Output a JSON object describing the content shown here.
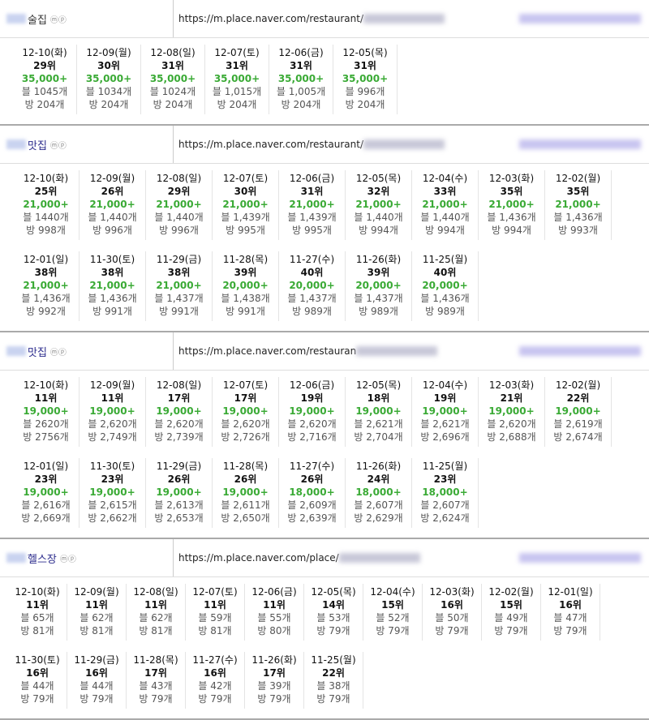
{
  "sections": [
    {
      "keyword": "술집",
      "icons": "ⓜⓟ",
      "url": "https://m.place.naver.com/restaurant/",
      "cells": [
        {
          "date": "12-10(화)",
          "rank": "29위",
          "reviews": "35,000+",
          "blog": "블 1045개",
          "place": "방 204개"
        },
        {
          "date": "12-09(월)",
          "rank": "30위",
          "reviews": "35,000+",
          "blog": "블 1034개",
          "place": "방 204개"
        },
        {
          "date": "12-08(일)",
          "rank": "31위",
          "reviews": "35,000+",
          "blog": "블 1024개",
          "place": "방 204개"
        },
        {
          "date": "12-07(토)",
          "rank": "31위",
          "reviews": "35,000+",
          "blog": "블 1,015개",
          "place": "방 204개"
        },
        {
          "date": "12-06(금)",
          "rank": "31위",
          "reviews": "35,000+",
          "blog": "블 1,005개",
          "place": "방 204개"
        },
        {
          "date": "12-05(목)",
          "rank": "31위",
          "reviews": "35,000+",
          "blog": "블 996개",
          "place": "방 204개"
        }
      ]
    },
    {
      "keyword": "맛집",
      "icons": "ⓜⓟ",
      "url": "https://m.place.naver.com/restaurant/",
      "cells": [
        {
          "date": "12-10(화)",
          "rank": "25위",
          "reviews": "21,000+",
          "blog": "블 1440개",
          "place": "방 998개"
        },
        {
          "date": "12-09(월)",
          "rank": "26위",
          "reviews": "21,000+",
          "blog": "블 1,440개",
          "place": "방 996개"
        },
        {
          "date": "12-08(일)",
          "rank": "29위",
          "reviews": "21,000+",
          "blog": "블 1,440개",
          "place": "방 996개"
        },
        {
          "date": "12-07(토)",
          "rank": "30위",
          "reviews": "21,000+",
          "blog": "블 1,439개",
          "place": "방 995개"
        },
        {
          "date": "12-06(금)",
          "rank": "31위",
          "reviews": "21,000+",
          "blog": "블 1,439개",
          "place": "방 995개"
        },
        {
          "date": "12-05(목)",
          "rank": "32위",
          "reviews": "21,000+",
          "blog": "블 1,440개",
          "place": "방 994개"
        },
        {
          "date": "12-04(수)",
          "rank": "33위",
          "reviews": "21,000+",
          "blog": "블 1,440개",
          "place": "방 994개"
        },
        {
          "date": "12-03(화)",
          "rank": "35위",
          "reviews": "21,000+",
          "blog": "블 1,436개",
          "place": "방 994개"
        },
        {
          "date": "12-02(월)",
          "rank": "35위",
          "reviews": "21,000+",
          "blog": "블 1,436개",
          "place": "방 993개"
        },
        {
          "date": "12-01(일)",
          "rank": "38위",
          "reviews": "21,000+",
          "blog": "블 1,436개",
          "place": "방 992개"
        },
        {
          "date": "11-30(토)",
          "rank": "38위",
          "reviews": "21,000+",
          "blog": "블 1,436개",
          "place": "방 991개"
        },
        {
          "date": "11-29(금)",
          "rank": "38위",
          "reviews": "21,000+",
          "blog": "블 1,437개",
          "place": "방 991개"
        },
        {
          "date": "11-28(목)",
          "rank": "39위",
          "reviews": "20,000+",
          "blog": "블 1,438개",
          "place": "방 991개"
        },
        {
          "date": "11-27(수)",
          "rank": "40위",
          "reviews": "20,000+",
          "blog": "블 1,437개",
          "place": "방 989개"
        },
        {
          "date": "11-26(화)",
          "rank": "39위",
          "reviews": "20,000+",
          "blog": "블 1,437개",
          "place": "방 989개"
        },
        {
          "date": "11-25(월)",
          "rank": "40위",
          "reviews": "20,000+",
          "blog": "블 1,436개",
          "place": "방 989개"
        }
      ]
    },
    {
      "keyword": "맛집",
      "icons": "ⓜⓟ",
      "url": "https://m.place.naver.com/restauran",
      "cells": [
        {
          "date": "12-10(화)",
          "rank": "11위",
          "reviews": "19,000+",
          "blog": "블 2620개",
          "place": "방 2756개"
        },
        {
          "date": "12-09(월)",
          "rank": "11위",
          "reviews": "19,000+",
          "blog": "블 2,620개",
          "place": "방 2,749개"
        },
        {
          "date": "12-08(일)",
          "rank": "17위",
          "reviews": "19,000+",
          "blog": "블 2,620개",
          "place": "방 2,739개"
        },
        {
          "date": "12-07(토)",
          "rank": "17위",
          "reviews": "19,000+",
          "blog": "블 2,620개",
          "place": "방 2,726개"
        },
        {
          "date": "12-06(금)",
          "rank": "19위",
          "reviews": "19,000+",
          "blog": "블 2,620개",
          "place": "방 2,716개"
        },
        {
          "date": "12-05(목)",
          "rank": "18위",
          "reviews": "19,000+",
          "blog": "블 2,621개",
          "place": "방 2,704개"
        },
        {
          "date": "12-04(수)",
          "rank": "19위",
          "reviews": "19,000+",
          "blog": "블 2,621개",
          "place": "방 2,696개"
        },
        {
          "date": "12-03(화)",
          "rank": "21위",
          "reviews": "19,000+",
          "blog": "블 2,620개",
          "place": "방 2,688개"
        },
        {
          "date": "12-02(월)",
          "rank": "22위",
          "reviews": "19,000+",
          "blog": "블 2,619개",
          "place": "방 2,674개"
        },
        {
          "date": "12-01(일)",
          "rank": "23위",
          "reviews": "19,000+",
          "blog": "블 2,616개",
          "place": "방 2,669개"
        },
        {
          "date": "11-30(토)",
          "rank": "23위",
          "reviews": "19,000+",
          "blog": "블 2,615개",
          "place": "방 2,662개"
        },
        {
          "date": "11-29(금)",
          "rank": "26위",
          "reviews": "19,000+",
          "blog": "블 2,613개",
          "place": "방 2,653개"
        },
        {
          "date": "11-28(목)",
          "rank": "26위",
          "reviews": "19,000+",
          "blog": "블 2,611개",
          "place": "방 2,650개"
        },
        {
          "date": "11-27(수)",
          "rank": "26위",
          "reviews": "18,000+",
          "blog": "블 2,609개",
          "place": "방 2,639개"
        },
        {
          "date": "11-26(화)",
          "rank": "24위",
          "reviews": "18,000+",
          "blog": "블 2,607개",
          "place": "방 2,629개"
        },
        {
          "date": "11-25(월)",
          "rank": "23위",
          "reviews": "18,000+",
          "blog": "블 2,607개",
          "place": "방 2,624개"
        }
      ]
    },
    {
      "keyword": "헬스장",
      "icons": "ⓜⓟ",
      "url": "https://m.place.naver.com/place/",
      "cells": [
        {
          "date": "12-10(화)",
          "rank": "11위",
          "blog": "블 65개",
          "place": "방 81개"
        },
        {
          "date": "12-09(월)",
          "rank": "11위",
          "blog": "블 62개",
          "place": "방 81개"
        },
        {
          "date": "12-08(일)",
          "rank": "11위",
          "blog": "블 62개",
          "place": "방 81개"
        },
        {
          "date": "12-07(토)",
          "rank": "11위",
          "blog": "블 59개",
          "place": "방 81개"
        },
        {
          "date": "12-06(금)",
          "rank": "11위",
          "blog": "블 55개",
          "place": "방 80개"
        },
        {
          "date": "12-05(목)",
          "rank": "14위",
          "blog": "블 53개",
          "place": "방 79개"
        },
        {
          "date": "12-04(수)",
          "rank": "15위",
          "blog": "블 52개",
          "place": "방 79개"
        },
        {
          "date": "12-03(화)",
          "rank": "16위",
          "blog": "블 50개",
          "place": "방 79개"
        },
        {
          "date": "12-02(월)",
          "rank": "15위",
          "blog": "블 49개",
          "place": "방 79개"
        },
        {
          "date": "12-01(일)",
          "rank": "16위",
          "blog": "블 47개",
          "place": "방 79개"
        },
        {
          "date": "11-30(토)",
          "rank": "16위",
          "blog": "블 44개",
          "place": "방 79개"
        },
        {
          "date": "11-29(금)",
          "rank": "16위",
          "blog": "블 44개",
          "place": "방 79개"
        },
        {
          "date": "11-28(목)",
          "rank": "17위",
          "blog": "블 43개",
          "place": "방 79개"
        },
        {
          "date": "11-27(수)",
          "rank": "16위",
          "blog": "블 42개",
          "place": "방 79개"
        },
        {
          "date": "11-26(화)",
          "rank": "17위",
          "blog": "블 39개",
          "place": "방 79개"
        },
        {
          "date": "11-25(월)",
          "rank": "22위",
          "blog": "블 38개",
          "place": "방 79개"
        }
      ]
    }
  ]
}
